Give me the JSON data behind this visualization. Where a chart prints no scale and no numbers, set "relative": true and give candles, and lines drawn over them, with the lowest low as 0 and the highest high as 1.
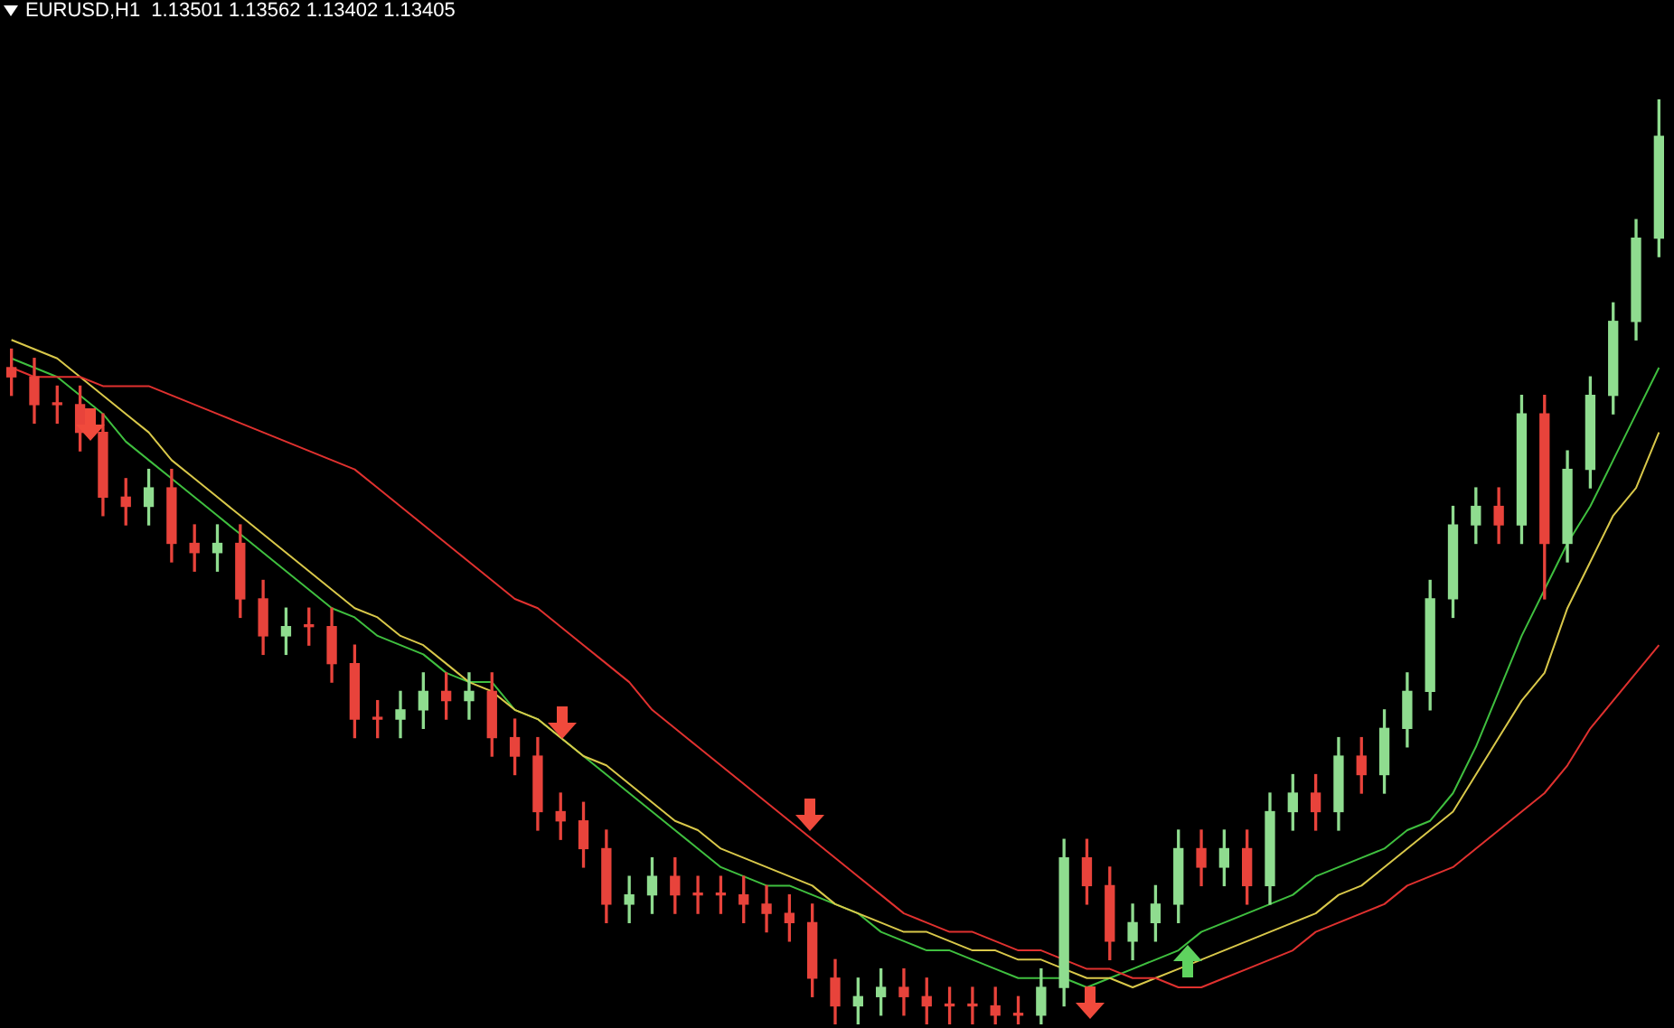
{
  "chart_data": {
    "type": "candlestick",
    "title": "EURUSD,H1  1.13501 1.13562 1.13402 1.13405",
    "relative": true,
    "categories": [
      null,
      null,
      null,
      null,
      null,
      null,
      null,
      null,
      null,
      null,
      null,
      null,
      null,
      null,
      null,
      null,
      null,
      null,
      null,
      null,
      null,
      null,
      null,
      null,
      null,
      null,
      null,
      null,
      null,
      null,
      null,
      null,
      null,
      null,
      null,
      null,
      null,
      null,
      null,
      null,
      null,
      null,
      null,
      null,
      null,
      null,
      null,
      null,
      null,
      null,
      null,
      null,
      null,
      null,
      null,
      null,
      null,
      null,
      null,
      null,
      null,
      null,
      null,
      null,
      null,
      null,
      null,
      null,
      null,
      null,
      null,
      null,
      null
    ],
    "ohlc": [
      [
        0.71,
        0.73,
        0.68,
        0.7
      ],
      [
        0.7,
        0.72,
        0.65,
        0.67
      ],
      [
        0.67,
        0.69,
        0.65,
        0.67
      ],
      [
        0.67,
        0.69,
        0.62,
        0.64
      ],
      [
        0.64,
        0.66,
        0.55,
        0.57
      ],
      [
        0.57,
        0.59,
        0.54,
        0.56
      ],
      [
        0.56,
        0.6,
        0.54,
        0.58
      ],
      [
        0.58,
        0.6,
        0.5,
        0.52
      ],
      [
        0.52,
        0.54,
        0.49,
        0.51
      ],
      [
        0.51,
        0.54,
        0.49,
        0.52
      ],
      [
        0.52,
        0.54,
        0.44,
        0.46
      ],
      [
        0.46,
        0.48,
        0.4,
        0.42
      ],
      [
        0.42,
        0.45,
        0.4,
        0.43
      ],
      [
        0.43,
        0.45,
        0.41,
        0.43
      ],
      [
        0.43,
        0.45,
        0.37,
        0.39
      ],
      [
        0.39,
        0.41,
        0.31,
        0.33
      ],
      [
        0.33,
        0.35,
        0.31,
        0.33
      ],
      [
        0.33,
        0.36,
        0.31,
        0.34
      ],
      [
        0.34,
        0.38,
        0.32,
        0.36
      ],
      [
        0.36,
        0.38,
        0.33,
        0.35
      ],
      [
        0.35,
        0.38,
        0.33,
        0.36
      ],
      [
        0.36,
        0.38,
        0.29,
        0.31
      ],
      [
        0.31,
        0.33,
        0.27,
        0.29
      ],
      [
        0.29,
        0.31,
        0.21,
        0.23
      ],
      [
        0.23,
        0.25,
        0.2,
        0.22
      ],
      [
        0.22,
        0.24,
        0.17,
        0.19
      ],
      [
        0.19,
        0.21,
        0.11,
        0.13
      ],
      [
        0.13,
        0.16,
        0.11,
        0.14
      ],
      [
        0.14,
        0.18,
        0.12,
        0.16
      ],
      [
        0.16,
        0.18,
        0.12,
        0.14
      ],
      [
        0.14,
        0.16,
        0.12,
        0.14
      ],
      [
        0.14,
        0.16,
        0.12,
        0.14
      ],
      [
        0.14,
        0.16,
        0.11,
        0.13
      ],
      [
        0.13,
        0.15,
        0.1,
        0.12
      ],
      [
        0.12,
        0.14,
        0.09,
        0.11
      ],
      [
        0.11,
        0.13,
        0.03,
        0.05
      ],
      [
        0.05,
        0.07,
        0.0,
        0.02
      ],
      [
        0.02,
        0.05,
        0.0,
        0.03
      ],
      [
        0.03,
        0.06,
        0.01,
        0.04
      ],
      [
        0.04,
        0.06,
        0.01,
        0.03
      ],
      [
        0.03,
        0.05,
        0.0,
        0.02
      ],
      [
        0.02,
        0.04,
        0.0,
        0.02
      ],
      [
        0.02,
        0.04,
        0.0,
        0.02
      ],
      [
        0.02,
        0.04,
        0.0,
        0.01
      ],
      [
        0.01,
        0.03,
        0.0,
        0.01
      ],
      [
        0.01,
        0.06,
        0.0,
        0.04
      ],
      [
        0.04,
        0.2,
        0.02,
        0.18
      ],
      [
        0.18,
        0.2,
        0.13,
        0.15
      ],
      [
        0.15,
        0.17,
        0.07,
        0.09
      ],
      [
        0.09,
        0.13,
        0.07,
        0.11
      ],
      [
        0.11,
        0.15,
        0.09,
        0.13
      ],
      [
        0.13,
        0.21,
        0.11,
        0.19
      ],
      [
        0.19,
        0.21,
        0.15,
        0.17
      ],
      [
        0.17,
        0.21,
        0.15,
        0.19
      ],
      [
        0.19,
        0.21,
        0.13,
        0.15
      ],
      [
        0.15,
        0.25,
        0.13,
        0.23
      ],
      [
        0.23,
        0.27,
        0.21,
        0.25
      ],
      [
        0.25,
        0.27,
        0.21,
        0.23
      ],
      [
        0.23,
        0.31,
        0.21,
        0.29
      ],
      [
        0.29,
        0.31,
        0.25,
        0.27
      ],
      [
        0.27,
        0.34,
        0.25,
        0.32
      ],
      [
        0.32,
        0.38,
        0.3,
        0.36
      ],
      [
        0.36,
        0.48,
        0.34,
        0.46
      ],
      [
        0.46,
        0.56,
        0.44,
        0.54
      ],
      [
        0.54,
        0.58,
        0.52,
        0.56
      ],
      [
        0.56,
        0.58,
        0.52,
        0.54
      ],
      [
        0.54,
        0.68,
        0.52,
        0.66
      ],
      [
        0.66,
        0.68,
        0.46,
        0.52
      ],
      [
        0.52,
        0.62,
        0.5,
        0.6
      ],
      [
        0.6,
        0.7,
        0.58,
        0.68
      ],
      [
        0.68,
        0.78,
        0.66,
        0.76
      ],
      [
        0.76,
        0.87,
        0.74,
        0.85
      ],
      [
        0.85,
        1.0,
        0.83,
        0.96
      ]
    ],
    "colors": [
      "#e8433b",
      "#e8433b",
      "#e8433b",
      "#e8433b",
      "#e8433b",
      "#e8433b",
      "#8fdc8f",
      "#e8433b",
      "#e8433b",
      "#8fdc8f",
      "#e8433b",
      "#e8433b",
      "#8fdc8f",
      "#e8433b",
      "#e8433b",
      "#e8433b",
      "#e8433b",
      "#8fdc8f",
      "#8fdc8f",
      "#e8433b",
      "#8fdc8f",
      "#e8433b",
      "#e8433b",
      "#e8433b",
      "#e8433b",
      "#e8433b",
      "#e8433b",
      "#8fdc8f",
      "#8fdc8f",
      "#e8433b",
      "#e8433b",
      "#e8433b",
      "#e8433b",
      "#e8433b",
      "#e8433b",
      "#e8433b",
      "#e8433b",
      "#8fdc8f",
      "#8fdc8f",
      "#e8433b",
      "#e8433b",
      "#e8433b",
      "#e8433b",
      "#e8433b",
      "#e8433b",
      "#8fdc8f",
      "#8fdc8f",
      "#e8433b",
      "#e8433b",
      "#8fdc8f",
      "#8fdc8f",
      "#8fdc8f",
      "#e8433b",
      "#8fdc8f",
      "#e8433b",
      "#8fdc8f",
      "#8fdc8f",
      "#e8433b",
      "#8fdc8f",
      "#e8433b",
      "#8fdc8f",
      "#8fdc8f",
      "#8fdc8f",
      "#8fdc8f",
      "#8fdc8f",
      "#e8433b",
      "#8fdc8f",
      "#e8433b",
      "#8fdc8f",
      "#8fdc8f",
      "#8fdc8f",
      "#8fdc8f",
      "#8fdc8f"
    ],
    "series": [
      {
        "type": "line",
        "color": "#e0312f",
        "values": [
          0.71,
          0.7,
          0.7,
          0.7,
          0.69,
          0.69,
          0.69,
          0.68,
          0.67,
          0.66,
          0.65,
          0.64,
          0.63,
          0.62,
          0.61,
          0.6,
          0.58,
          0.56,
          0.54,
          0.52,
          0.5,
          0.48,
          0.46,
          0.45,
          0.43,
          0.41,
          0.39,
          0.37,
          0.34,
          0.32,
          0.3,
          0.28,
          0.26,
          0.24,
          0.22,
          0.2,
          0.18,
          0.16,
          0.14,
          0.12,
          0.11,
          0.1,
          0.1,
          0.09,
          0.08,
          0.08,
          0.07,
          0.06,
          0.06,
          0.05,
          0.05,
          0.04,
          0.04,
          0.05,
          0.06,
          0.07,
          0.08,
          0.1,
          0.11,
          0.12,
          0.13,
          0.15,
          0.16,
          0.17,
          0.19,
          0.21,
          0.23,
          0.25,
          0.28,
          0.32,
          0.35,
          0.38,
          0.41
        ]
      },
      {
        "type": "line",
        "color": "#d9c84a",
        "values": [
          0.74,
          0.73,
          0.72,
          0.7,
          0.68,
          0.66,
          0.64,
          0.61,
          0.59,
          0.57,
          0.55,
          0.53,
          0.51,
          0.49,
          0.47,
          0.45,
          0.44,
          0.42,
          0.41,
          0.39,
          0.37,
          0.36,
          0.34,
          0.33,
          0.31,
          0.29,
          0.28,
          0.26,
          0.24,
          0.22,
          0.21,
          0.19,
          0.18,
          0.17,
          0.16,
          0.15,
          0.13,
          0.12,
          0.11,
          0.1,
          0.1,
          0.09,
          0.08,
          0.08,
          0.07,
          0.07,
          0.06,
          0.05,
          0.05,
          0.04,
          0.05,
          0.06,
          0.07,
          0.08,
          0.09,
          0.1,
          0.11,
          0.12,
          0.14,
          0.15,
          0.17,
          0.19,
          0.21,
          0.23,
          0.27,
          0.31,
          0.35,
          0.38,
          0.45,
          0.5,
          0.55,
          0.58,
          0.64
        ]
      },
      {
        "type": "line",
        "color": "#3fbf3f",
        "values": [
          0.72,
          0.71,
          0.7,
          0.68,
          0.66,
          0.63,
          0.61,
          0.59,
          0.57,
          0.55,
          0.53,
          0.51,
          0.49,
          0.47,
          0.45,
          0.44,
          0.42,
          0.41,
          0.4,
          0.38,
          0.37,
          0.37,
          0.34,
          0.33,
          0.31,
          0.29,
          0.27,
          0.25,
          0.23,
          0.21,
          0.19,
          0.17,
          0.16,
          0.15,
          0.15,
          0.14,
          0.13,
          0.12,
          0.1,
          0.09,
          0.08,
          0.08,
          0.07,
          0.06,
          0.05,
          0.05,
          0.05,
          0.04,
          0.05,
          0.06,
          0.07,
          0.08,
          0.1,
          0.11,
          0.12,
          0.13,
          0.14,
          0.16,
          0.17,
          0.18,
          0.19,
          0.21,
          0.22,
          0.25,
          0.3,
          0.36,
          0.42,
          0.47,
          0.52,
          0.56,
          0.61,
          0.66,
          0.71
        ]
      }
    ]
  }
}
